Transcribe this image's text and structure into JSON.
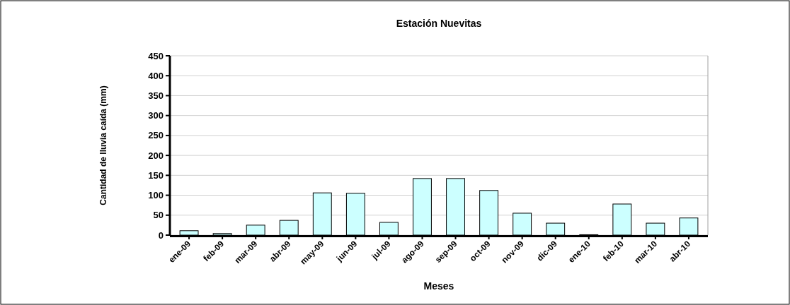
{
  "chart_data": {
    "type": "bar",
    "title": "Estación Nuevitas",
    "xlabel": "Meses",
    "ylabel": "Cantidad de lluvia caída (mm)",
    "categories": [
      "ene-09",
      "feb-09",
      "mar-09",
      "abr-09",
      "may-09",
      "jun-09",
      "jul-09",
      "ago-09",
      "sep-09",
      "oct-09",
      "nov-09",
      "dic-09",
      "ene-10",
      "feb-10",
      "mar-10",
      "abr-10"
    ],
    "values": [
      11,
      4,
      25,
      37,
      106,
      105,
      32,
      142,
      142,
      112,
      55,
      30,
      1,
      78,
      30,
      43
    ],
    "color": "#ccffff",
    "ylim": [
      0,
      450
    ],
    "yticks": [
      0,
      50,
      100,
      150,
      200,
      250,
      300,
      350,
      400,
      450
    ],
    "grid": "y"
  }
}
